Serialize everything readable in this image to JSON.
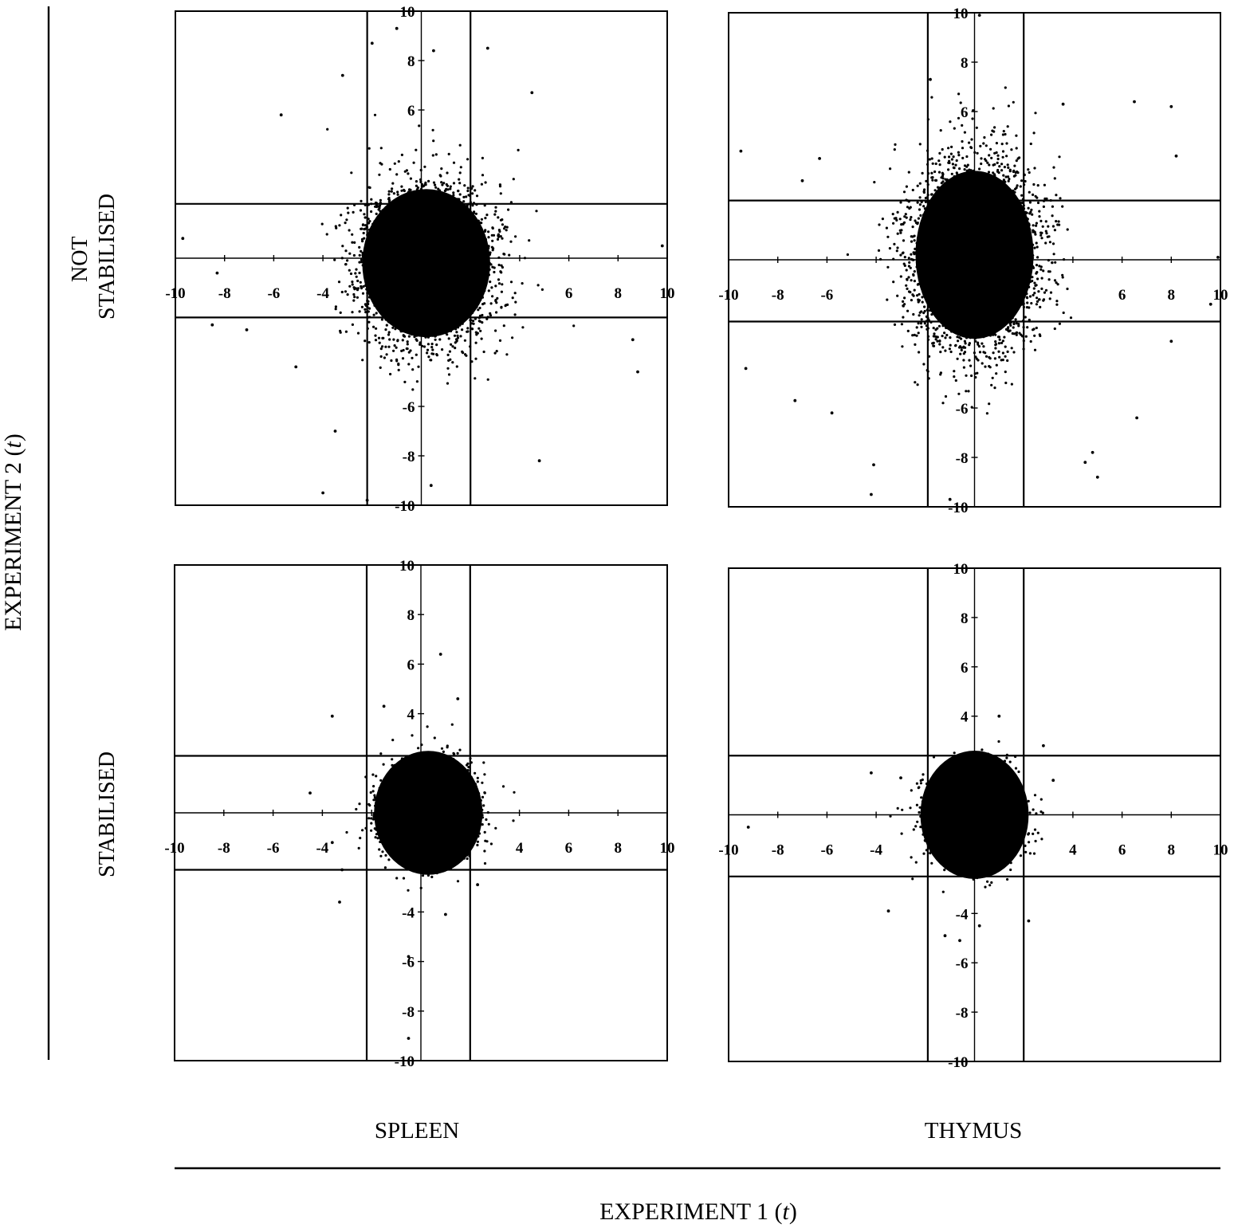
{
  "figure": {
    "y_title_main": "EXPERIMENT 2 (",
    "y_title_var": "t",
    "y_title_end": ")",
    "x_title_main": "EXPERIMENT 1 (",
    "x_title_var": "t",
    "x_title_end": ")",
    "rows": {
      "not_stabilised_line1": "NOT",
      "not_stabilised_line2": "STABILISED",
      "stabilised": "STABILISED"
    },
    "columns": {
      "spleen": "SPLEEN",
      "thymus": "THYMUS"
    }
  },
  "chart_data": [
    {
      "type": "scatter",
      "panel": "spleen-not-stabilised",
      "xlim": [
        -10,
        10
      ],
      "ylim": [
        -10,
        10
      ],
      "x_ticks": [
        -10,
        -8,
        -6,
        -4,
        -2,
        2,
        4,
        6,
        8,
        10
      ],
      "x_tick_labels": [
        "-10",
        "-8",
        "-6",
        "-4",
        "",
        "",
        "",
        "6",
        "8",
        "10"
      ],
      "y_ticks": [
        10,
        8,
        6,
        -6,
        -8,
        -10
      ],
      "y_tick_labels": [
        "10",
        "8",
        "6",
        "-6",
        "-8",
        "-10"
      ],
      "threshold_x": [
        -2.2,
        2
      ],
      "threshold_y": [
        2.2,
        -2.4
      ],
      "cloud": {
        "center": [
          0.2,
          -0.2
        ],
        "dense_radius": [
          2.6,
          3.0
        ],
        "sd": [
          1.3,
          1.6
        ],
        "n": 3200,
        "seed": 11
      },
      "outliers": [
        [
          -5.7,
          5.8
        ],
        [
          -3.2,
          7.4
        ],
        [
          -2.0,
          8.7
        ],
        [
          -1.0,
          9.3
        ],
        [
          0.5,
          8.4
        ],
        [
          2.7,
          8.5
        ],
        [
          4.5,
          6.7
        ],
        [
          9.8,
          0.5
        ],
        [
          -9.7,
          0.8
        ],
        [
          -8.5,
          -2.7
        ],
        [
          -7.1,
          -2.9
        ],
        [
          4.8,
          -8.2
        ],
        [
          -4.0,
          -9.5
        ],
        [
          -2.2,
          -9.8
        ],
        [
          0.4,
          -9.2
        ],
        [
          8.6,
          -3.3
        ],
        [
          8.8,
          -4.6
        ],
        [
          -5.1,
          -4.4
        ],
        [
          -3.5,
          -7.0
        ],
        [
          -8.3,
          -0.6
        ]
      ]
    },
    {
      "type": "scatter",
      "panel": "thymus-not-stabilised",
      "xlim": [
        -10,
        10
      ],
      "ylim": [
        -10,
        10
      ],
      "x_ticks": [
        -10,
        -8,
        -6,
        -4,
        -2,
        2,
        4,
        6,
        8,
        10
      ],
      "x_tick_labels": [
        "-10",
        "-8",
        "-6",
        "",
        "",
        "",
        "",
        "6",
        "8",
        "10"
      ],
      "y_ticks": [
        10,
        8,
        6,
        -6,
        -8,
        -10
      ],
      "y_tick_labels": [
        "10",
        "8",
        "6",
        "-6",
        "-8",
        "-10"
      ],
      "threshold_x": [
        -1.9,
        2
      ],
      "threshold_y": [
        2.4,
        -2.5
      ],
      "cloud": {
        "center": [
          0.0,
          0.2
        ],
        "dense_radius": [
          2.4,
          3.4
        ],
        "sd": [
          1.3,
          1.9
        ],
        "n": 3400,
        "seed": 23
      },
      "outliers": [
        [
          -9.5,
          4.4
        ],
        [
          -7.0,
          3.2
        ],
        [
          -6.3,
          4.1
        ],
        [
          -9.3,
          -4.4
        ],
        [
          -7.3,
          -5.7
        ],
        [
          -5.8,
          -6.2
        ],
        [
          -4.1,
          -8.3
        ],
        [
          -4.2,
          -9.5
        ],
        [
          -1.0,
          -9.7
        ],
        [
          0.2,
          9.9
        ],
        [
          -1.8,
          7.3
        ],
        [
          3.6,
          6.3
        ],
        [
          6.5,
          6.4
        ],
        [
          8.0,
          6.2
        ],
        [
          8.2,
          4.2
        ],
        [
          9.9,
          0.1
        ],
        [
          9.6,
          -1.8
        ],
        [
          8.0,
          -3.3
        ],
        [
          4.5,
          -8.2
        ],
        [
          5.0,
          -8.8
        ],
        [
          4.8,
          -7.8
        ],
        [
          6.6,
          -6.4
        ]
      ]
    },
    {
      "type": "scatter",
      "panel": "spleen-stabilised",
      "xlim": [
        -10,
        10
      ],
      "ylim": [
        -10,
        10
      ],
      "x_ticks": [
        -10,
        -8,
        -6,
        -4,
        -2,
        2,
        4,
        6,
        8,
        10
      ],
      "x_tick_labels": [
        "-10",
        "-8",
        "-6",
        "-4",
        "",
        "",
        "4",
        "6",
        "8",
        "10"
      ],
      "y_ticks": [
        10,
        8,
        6,
        4,
        -4,
        -6,
        -8,
        -10
      ],
      "y_tick_labels": [
        "10",
        "8",
        "6",
        "4",
        "-4",
        "-6",
        "-8",
        "-10"
      ],
      "threshold_x": [
        -2.2,
        2
      ],
      "threshold_y": [
        2.3,
        -2.3
      ],
      "cloud": {
        "center": [
          0.3,
          0.0
        ],
        "dense_radius": [
          2.2,
          2.5
        ],
        "sd": [
          0.9,
          0.9
        ],
        "n": 2600,
        "seed": 37
      },
      "outliers": [
        [
          0.8,
          6.4
        ],
        [
          1.5,
          4.6
        ],
        [
          -1.5,
          4.3
        ],
        [
          -3.6,
          3.9
        ],
        [
          -4.5,
          0.8
        ],
        [
          -3.6,
          -1.2
        ],
        [
          -3.2,
          -2.3
        ],
        [
          -3.3,
          -3.6
        ],
        [
          -0.5,
          -5.8
        ],
        [
          -0.5,
          -9.1
        ],
        [
          1.0,
          -4.1
        ],
        [
          2.3,
          -2.9
        ]
      ]
    },
    {
      "type": "scatter",
      "panel": "thymus-stabilised",
      "xlim": [
        -10,
        10
      ],
      "ylim": [
        -10,
        10
      ],
      "x_ticks": [
        -10,
        -8,
        -6,
        -4,
        -2,
        2,
        4,
        6,
        8,
        10
      ],
      "x_tick_labels": [
        "-10",
        "-8",
        "-6",
        "-4",
        "",
        "",
        "4",
        "6",
        "8",
        "10"
      ],
      "y_ticks": [
        10,
        8,
        6,
        4,
        -4,
        -6,
        -8,
        -10
      ],
      "y_tick_labels": [
        "10",
        "8",
        "6",
        "4",
        "-4",
        "-6",
        "-8",
        "-10"
      ],
      "threshold_x": [
        -1.9,
        2
      ],
      "threshold_y": [
        2.4,
        -2.5
      ],
      "cloud": {
        "center": [
          0.0,
          0.0
        ],
        "dense_radius": [
          2.2,
          2.6
        ],
        "sd": [
          0.9,
          0.9
        ],
        "n": 2600,
        "seed": 53
      },
      "outliers": [
        [
          -4.2,
          1.7
        ],
        [
          -3.0,
          1.5
        ],
        [
          -3.5,
          -3.9
        ],
        [
          -9.2,
          -0.5
        ],
        [
          -1.2,
          -4.9
        ],
        [
          -0.6,
          -5.1
        ],
        [
          1.0,
          4.0
        ],
        [
          2.8,
          2.8
        ],
        [
          3.2,
          1.4
        ],
        [
          2.2,
          -4.3
        ],
        [
          0.2,
          -4.5
        ]
      ]
    }
  ]
}
